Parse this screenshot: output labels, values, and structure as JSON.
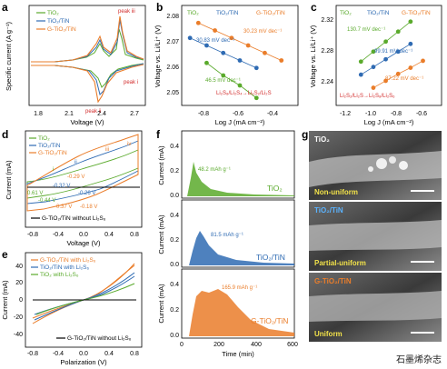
{
  "colors": {
    "tio2": "#5aaa2c",
    "tio2tin": "#2f6bb3",
    "gtio2tin": "#ea7d2a",
    "peak_red": "#d22b2b",
    "black": "#000000"
  },
  "watermark": "石墨烯杂志",
  "chart_data": [
    {
      "id": "a",
      "type": "line",
      "letter": "a",
      "xlabel": "Voltage (V)",
      "ylabel": "Specific current (A g⁻¹)",
      "xticks": [
        "1.8",
        "2.1",
        "2.4",
        "2.7"
      ],
      "xlim": [
        1.7,
        2.8
      ],
      "legend": [
        "TiO₂",
        "TiO₂/TiN",
        "G-TiO₂/TiN"
      ],
      "annotations": [
        "peak iii",
        "peak i",
        "peak ii"
      ]
    },
    {
      "id": "b",
      "type": "scatter",
      "letter": "b",
      "xlabel": "Log J (mA cm⁻²)",
      "ylabel": "Voltage vs. Li/Li⁺ (V)",
      "xticks": [
        "-0.8",
        "-0.6",
        "-0.4"
      ],
      "yticks": [
        "2.05",
        "2.06",
        "2.07",
        "2.08"
      ],
      "xlim": [
        -1.0,
        -0.3
      ],
      "ylim": [
        2.045,
        2.085
      ],
      "legend": [
        "TiO₂",
        "TiO₂/TiN",
        "G-TiO₂/TiN"
      ],
      "slopes": [
        "30.23 mV dec⁻¹",
        "30.83 mV dec⁻¹",
        "46.5 mV dec⁻¹"
      ],
      "reaction": "Li₂S₈/Li₂S₄→Li₂S₂/Li₂S",
      "series": [
        {
          "name": "G-TiO₂/TiN",
          "x": [
            -0.9,
            -0.8,
            -0.7,
            -0.6,
            -0.5,
            -0.4
          ],
          "y": [
            2.078,
            2.075,
            2.072,
            2.069,
            2.066,
            2.063
          ]
        },
        {
          "name": "TiO₂/TiN",
          "x": [
            -0.95,
            -0.85,
            -0.75,
            -0.65,
            -0.55
          ],
          "y": [
            2.072,
            2.069,
            2.066,
            2.063,
            2.06
          ]
        },
        {
          "name": "TiO₂",
          "x": [
            -0.85,
            -0.75,
            -0.65,
            -0.55
          ],
          "y": [
            2.062,
            2.057,
            2.053,
            2.048
          ]
        }
      ]
    },
    {
      "id": "c",
      "type": "scatter",
      "letter": "c",
      "xlabel": "Log J (mA cm⁻²)",
      "ylabel": "Voltage vs. Li/Li⁺ (V)",
      "xticks": [
        "-1.2",
        "-1.0",
        "-0.8",
        "-0.6"
      ],
      "yticks": [
        "2.24",
        "2.28",
        "2.32"
      ],
      "xlim": [
        -1.3,
        -0.45
      ],
      "ylim": [
        2.205,
        2.335
      ],
      "legend": [
        "TiO₂",
        "TiO₂/TiN",
        "G-TiO₂/TiN"
      ],
      "slopes": [
        "130.7 mV dec⁻¹",
        "99.91 mV dec⁻¹",
        "87.22 mV dec⁻¹"
      ],
      "reaction": "Li₂S₂/Li₂S→Li₂S₈/Li₂S₆",
      "series": [
        {
          "name": "TiO₂",
          "x": [
            -1.1,
            -1.0,
            -0.9,
            -0.8,
            -0.7
          ],
          "y": [
            2.262,
            2.275,
            2.288,
            2.301,
            2.314
          ]
        },
        {
          "name": "TiO₂/TiN",
          "x": [
            -1.1,
            -1.0,
            -0.9,
            -0.8,
            -0.7
          ],
          "y": [
            2.245,
            2.255,
            2.265,
            2.275,
            2.285
          ]
        },
        {
          "name": "G-TiO₂/TiN",
          "x": [
            -1.0,
            -0.9,
            -0.8,
            -0.7,
            -0.6
          ],
          "y": [
            2.228,
            2.237,
            2.246,
            2.254,
            2.263
          ]
        }
      ]
    },
    {
      "id": "d",
      "type": "line",
      "letter": "d",
      "xlabel": "Voltage (V)",
      "ylabel": "Current (mA)",
      "xticks": [
        "-0.8",
        "-0.4",
        "0.0",
        "0.4",
        "0.8"
      ],
      "xlim": [
        -1.0,
        1.0
      ],
      "legend": [
        "TiO₂",
        "TiO₂/TiN",
        "G-TiO₂/TiN"
      ],
      "legend2": "G-TiO₂/TiN without Li₂S₆",
      "peak_labels": [
        "i",
        "ii",
        "iii",
        "iv"
      ],
      "annotations": [
        "-0.29 V",
        "-0.32 V",
        "-0.26 V",
        "0.61 V",
        "-0.44 V",
        "-0.37 V",
        "-0.18 V"
      ]
    },
    {
      "id": "e",
      "type": "line",
      "letter": "e",
      "xlabel": "Polarization (V)",
      "ylabel": "Current (mA)",
      "xticks": [
        "-0.8",
        "-0.4",
        "0.0",
        "0.4",
        "0.8"
      ],
      "yticks": [
        "-40",
        "-20",
        "0",
        "20",
        "40"
      ],
      "xlim": [
        -1.0,
        1.0
      ],
      "ylim": [
        -45,
        45
      ],
      "legend": [
        "G-TiO₂/TiN with Li₂S₆",
        "TiO₂/TiN with Li₂S₆",
        "TiO₂ with Li₂S₆"
      ],
      "legend2": "G-TiO₂/TiN without Li₂S₆"
    },
    {
      "id": "f",
      "type": "area",
      "letter": "f",
      "xlabel": "Time (min)",
      "ylabel": "Current (mA)",
      "xticks": [
        "0",
        "200",
        "400",
        "600"
      ],
      "xlim": [
        0,
        600
      ],
      "subplots": [
        {
          "name": "TiO₂",
          "capacity": "48.2 mAh g⁻¹",
          "yticks": [
            "0.0",
            "0.2",
            "0.4"
          ]
        },
        {
          "name": "TiO₂/TiN",
          "capacity": "81.5 mAh g⁻¹",
          "yticks": [
            "0.0",
            "0.2",
            "0.4"
          ]
        },
        {
          "name": "G-TiO₂/TiN",
          "capacity": "165.9 mAh g⁻¹",
          "yticks": [
            "0.0",
            "0.2",
            "0.4"
          ]
        }
      ]
    }
  ],
  "sem": {
    "letter": "g",
    "panels": [
      {
        "title": "TiO₂",
        "caption": "Non-uniform"
      },
      {
        "title": "TiO₂/TiN",
        "caption": "Partial-uniform"
      },
      {
        "title": "G-TiO₂/TiN",
        "caption": "Uniform"
      }
    ]
  }
}
